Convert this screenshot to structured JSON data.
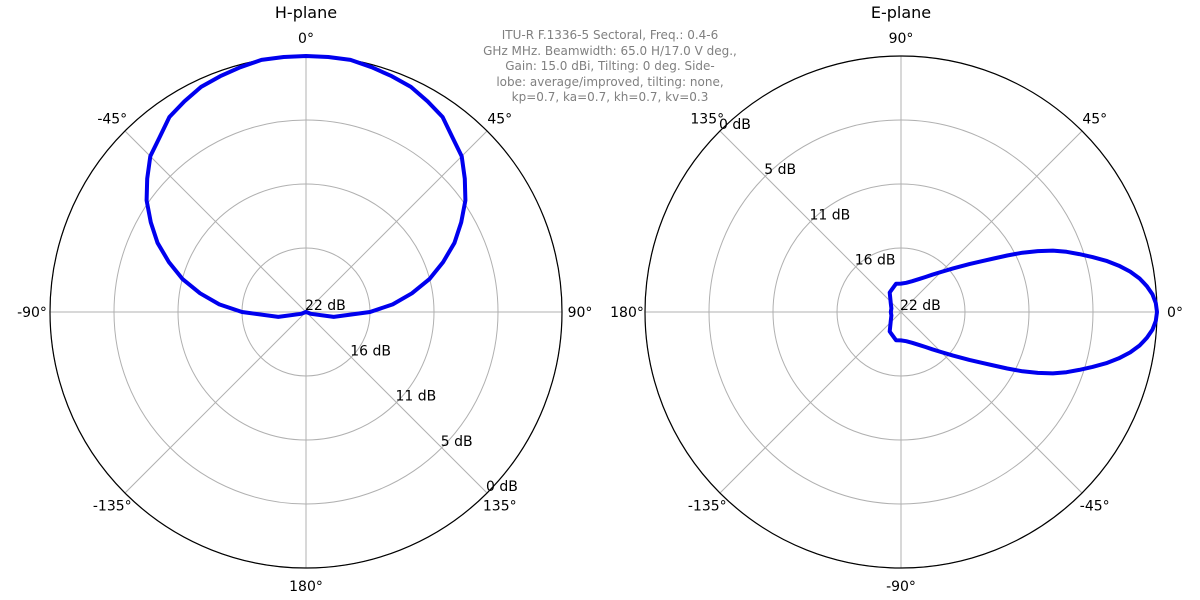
{
  "caption_lines": [
    "ITU-R F.1336-5 Sectoral, Freq.: 0.4-6",
    "GHz MHz. Beamwidth: 65.0 H/17.0 V deg.,",
    "Gain: 15.0 dBi, Tilting: 0 deg. Side-",
    "lobe: average/improved, tilting: none,",
    "kp=0.7, ka=0.7, kh=0.7, kv=0.3"
  ],
  "colors": {
    "pattern": "#0000ee",
    "grid": "#b0b0b0",
    "frame": "#000000",
    "text": "#000000",
    "caption": "#808080"
  },
  "chart_data": [
    {
      "type": "polar-line",
      "title": "H-plane",
      "theta_zero": "top",
      "theta_direction": "clockwise",
      "angle_ticks": [
        {
          "deg": 0,
          "label": "0°"
        },
        {
          "deg": 45,
          "label": "45°"
        },
        {
          "deg": 90,
          "label": "90°"
        },
        {
          "deg": 135,
          "label": "135°"
        },
        {
          "deg": 180,
          "label": "180°"
        },
        {
          "deg": -135,
          "label": "-135°"
        },
        {
          "deg": -90,
          "label": "-90°"
        },
        {
          "deg": -45,
          "label": "-45°"
        }
      ],
      "radial_ticks": [
        "22 dB",
        "16 dB",
        "11 dB",
        "5 dB",
        "0 dB"
      ],
      "radial_label_angle_deg": 135,
      "grid": true,
      "series": [
        {
          "angles_deg": [
            -180,
            -170,
            -160,
            -150,
            -140,
            -130,
            -120,
            -110,
            -100,
            -90,
            -85,
            -80,
            -75,
            -70,
            -65,
            -60,
            -55,
            -50,
            -45,
            -40,
            -35,
            -30,
            -25,
            -20,
            -15,
            -10,
            -5,
            0,
            5,
            10,
            15,
            20,
            25,
            30,
            35,
            40,
            45,
            50,
            55,
            60,
            65,
            70,
            75,
            80,
            85,
            90,
            100,
            110,
            120,
            130,
            140,
            150,
            160,
            170,
            180
          ],
          "r_values": [
            0.0,
            0.0,
            0.0,
            0.0,
            0.0,
            0.0,
            0.0,
            0.02,
            0.11,
            0.25,
            0.34,
            0.42,
            0.5,
            0.57,
            0.64,
            0.7,
            0.76,
            0.81,
            0.86,
            0.89,
            0.93,
            0.95,
            0.97,
            0.98,
            0.99,
            1.0,
            1.0,
            1.0,
            1.0,
            1.0,
            0.99,
            0.98,
            0.97,
            0.95,
            0.93,
            0.89,
            0.86,
            0.81,
            0.76,
            0.7,
            0.64,
            0.57,
            0.5,
            0.42,
            0.34,
            0.25,
            0.11,
            0.02,
            0.0,
            0.0,
            0.0,
            0.0,
            0.0,
            0.0,
            0.0
          ]
        }
      ]
    },
    {
      "type": "polar-line",
      "title": "E-plane",
      "theta_zero": "right",
      "theta_direction": "counterclockwise",
      "angle_ticks": [
        {
          "deg": 0,
          "label": "0°"
        },
        {
          "deg": 45,
          "label": "45°"
        },
        {
          "deg": 90,
          "label": "90°"
        },
        {
          "deg": 135,
          "label": "135°"
        },
        {
          "deg": 180,
          "label": "180°"
        },
        {
          "deg": -135,
          "label": "-135°"
        },
        {
          "deg": -90,
          "label": "-90°"
        },
        {
          "deg": -45,
          "label": "-45°"
        }
      ],
      "radial_ticks": [
        "22 dB",
        "16 dB",
        "11 dB",
        "5 dB",
        "0 dB"
      ],
      "radial_label_angle_deg": 135,
      "grid": true,
      "series": [
        {
          "angles_deg": [
            0,
            2,
            4,
            6,
            8,
            10,
            12,
            14,
            16,
            18,
            20,
            22,
            24,
            26,
            28,
            30,
            32,
            35,
            40,
            45,
            50,
            55,
            60,
            70,
            80,
            90,
            100,
            120,
            140,
            160,
            180,
            -160,
            -140,
            -120,
            -100,
            -90,
            -80,
            -70,
            -60,
            -55,
            -50,
            -45,
            -40,
            -35,
            -32,
            -30,
            -28,
            -26,
            -24,
            -22,
            -20,
            -18,
            -16,
            -14,
            -12,
            -10,
            -8,
            -6,
            -4,
            -2,
            0
          ],
          "r_values": [
            1.0,
            0.996,
            0.985,
            0.966,
            0.941,
            0.909,
            0.87,
            0.826,
            0.778,
            0.732,
            0.688,
            0.64,
            0.585,
            0.528,
            0.47,
            0.418,
            0.375,
            0.326,
            0.265,
            0.221,
            0.19,
            0.167,
            0.15,
            0.128,
            0.116,
            0.111,
            0.112,
            0.088,
            0.052,
            0.04,
            0.04,
            0.04,
            0.052,
            0.088,
            0.112,
            0.111,
            0.116,
            0.128,
            0.15,
            0.167,
            0.19,
            0.221,
            0.265,
            0.326,
            0.375,
            0.418,
            0.47,
            0.528,
            0.585,
            0.64,
            0.688,
            0.732,
            0.778,
            0.826,
            0.87,
            0.909,
            0.941,
            0.966,
            0.985,
            0.996,
            1.0
          ]
        }
      ]
    }
  ]
}
